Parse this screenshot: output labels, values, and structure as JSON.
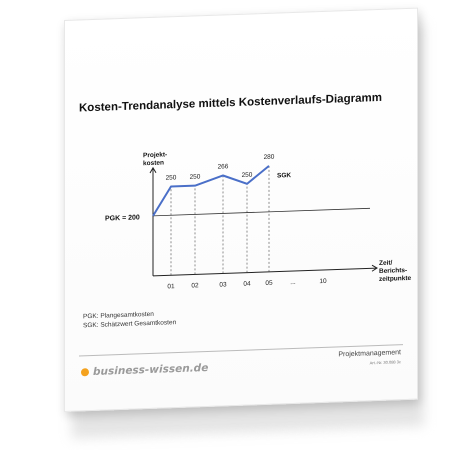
{
  "document": {
    "title": "Kosten-Trendanalyse mittels Kostenverlaufs-Diagramm",
    "category": "Projektmanagement",
    "article_no": "Art.-Nr. 30.088 3c",
    "brand": "business-wissen.de",
    "legend": [
      "PGK: Plangesamtkosten",
      "SGK: Schätzwert Gesamtkosten"
    ]
  },
  "chart_data": {
    "type": "line",
    "ylabel_lines": [
      "Projekt-",
      "kosten"
    ],
    "xlabel_lines": [
      "Zeit/",
      "Berichts-",
      "zeitpunkte"
    ],
    "x_ticks": [
      "01",
      "02",
      "03",
      "04",
      "05",
      "...",
      "10"
    ],
    "baseline": {
      "label": "PGK = 200",
      "value": 200
    },
    "series": [
      {
        "name": "SGK",
        "points": [
          {
            "x": "0",
            "y": 200
          },
          {
            "x": "01",
            "y": 250
          },
          {
            "x": "02",
            "y": 250
          },
          {
            "x": "03",
            "y": 266
          },
          {
            "x": "04",
            "y": 250
          },
          {
            "x": "05",
            "y": 280
          }
        ],
        "labels": [
          "250",
          "250",
          "266",
          "250",
          "280"
        ]
      }
    ],
    "colors": {
      "series": "#4a6fc8",
      "axis": "#222222",
      "baseline": "#333333"
    }
  }
}
